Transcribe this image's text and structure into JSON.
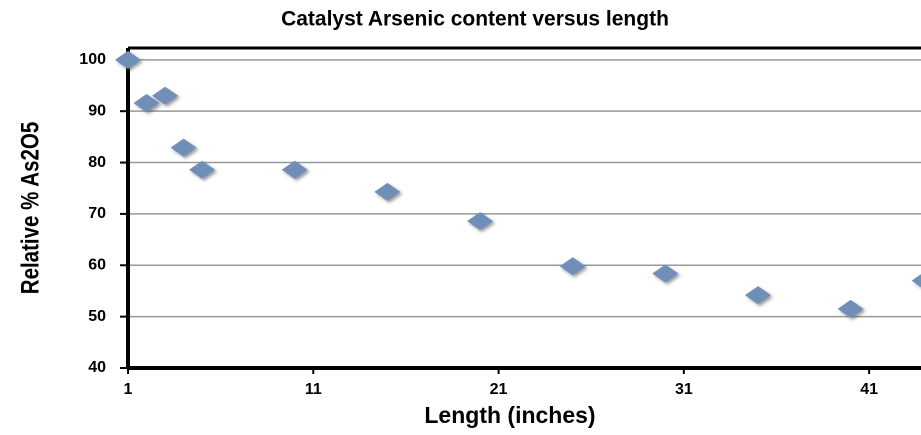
{
  "chart_data": {
    "type": "scatter",
    "title": "Catalyst Arsenic content versus length",
    "x_label": "Length (inches)",
    "y_label": "Relative % As2O5",
    "color": "#6f8fb8",
    "x": [
      1,
      2,
      3,
      4,
      5,
      10,
      15,
      20,
      25,
      30,
      35,
      40,
      44
    ],
    "values": [
      100,
      91.6,
      93,
      82.9,
      78.6,
      78.6,
      74.3,
      68.6,
      59.8,
      58.4,
      54.2,
      51.5,
      57
    ],
    "xlim": [
      1,
      43.8
    ],
    "xticks": [
      1,
      11,
      21,
      31,
      41
    ],
    "ylim": [
      40,
      102.3
    ],
    "yticks": [
      40,
      50,
      60,
      70,
      80,
      90,
      100
    ],
    "grid": true
  }
}
